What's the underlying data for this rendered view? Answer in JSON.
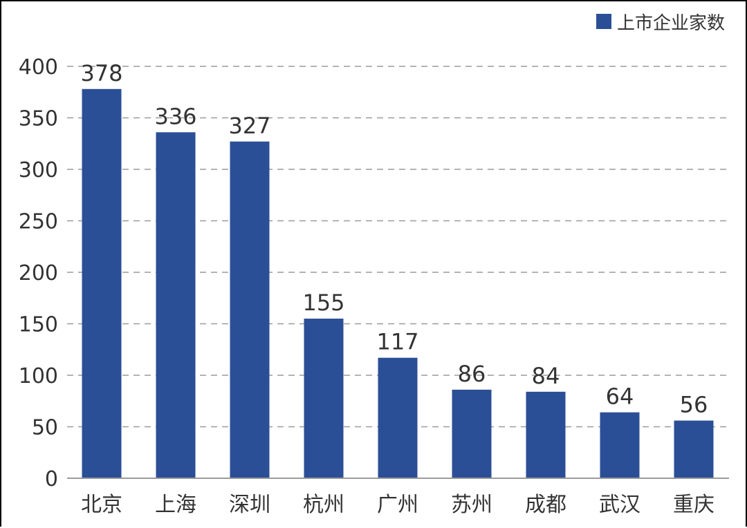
{
  "chart_data": {
    "type": "bar",
    "categories": [
      "北京",
      "上海",
      "深圳",
      "杭州",
      "广州",
      "苏州",
      "成都",
      "武汉",
      "重庆"
    ],
    "series": [
      {
        "name": "上市企业家数",
        "values": [
          378,
          336,
          327,
          155,
          117,
          86,
          84,
          64,
          56
        ],
        "color": "#2b4f96"
      }
    ],
    "ylim": [
      0,
      400
    ],
    "yticks": [
      0,
      50,
      100,
      150,
      200,
      250,
      300,
      350,
      400
    ],
    "grid": true,
    "grid_style": "dashed",
    "legend_position": "top-right",
    "data_labels": true
  }
}
